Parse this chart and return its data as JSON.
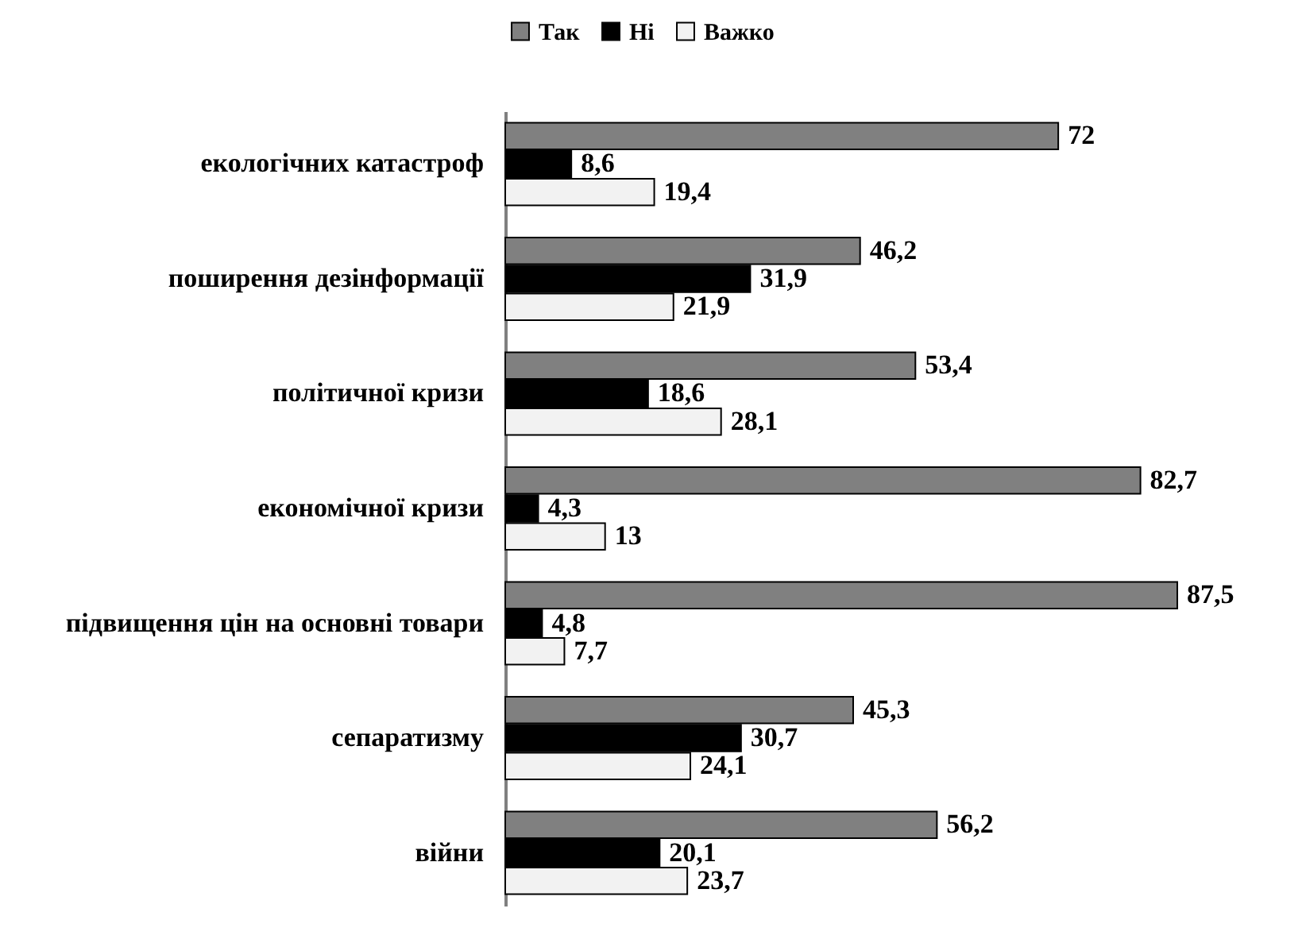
{
  "chart_data": {
    "type": "bar",
    "orientation": "horizontal",
    "legend": "top",
    "categories": [
      "екологічних катастроф",
      "поширення дезінформації",
      "політичної кризи",
      "економічної кризи",
      "підвищення цін на основні товари",
      "сепаратизму",
      "війни"
    ],
    "series": [
      {
        "name": "Так",
        "color": "#808080",
        "values": [
          72,
          46.2,
          53.4,
          82.7,
          87.5,
          45.3,
          56.2
        ],
        "value_labels": [
          "72",
          "46,2",
          "53,4",
          "82,7",
          "87,5",
          "45,3",
          "56,2"
        ]
      },
      {
        "name": "Ні",
        "color": "#000000",
        "values": [
          8.6,
          31.9,
          18.6,
          4.3,
          4.8,
          30.7,
          20.1
        ],
        "value_labels": [
          "8,6",
          "31,9",
          "18,6",
          "4,3",
          "4,8",
          "30,7",
          "20,1"
        ]
      },
      {
        "name": "Важко",
        "color": "#f2f2f2",
        "values": [
          19.4,
          21.9,
          28.1,
          13,
          7.7,
          24.1,
          23.7
        ],
        "value_labels": [
          "19,4",
          "21,9",
          "28,1",
          "13",
          "7,7",
          "24,1",
          "23,7"
        ]
      }
    ]
  }
}
